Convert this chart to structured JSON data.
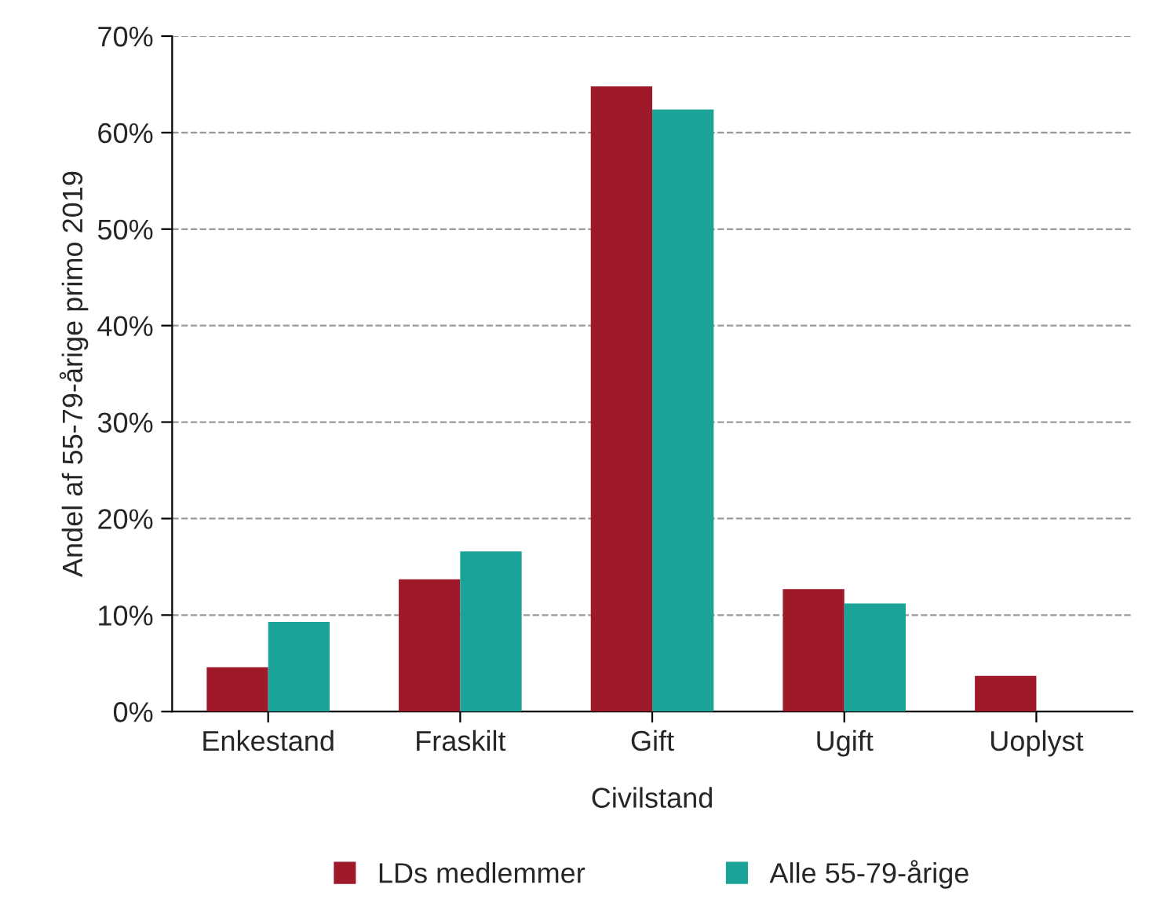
{
  "chart_data": {
    "type": "bar",
    "xlabel": "Civilstand",
    "ylabel": "Andel af 55-79-årige primo 2019",
    "categories": [
      "Enkestand",
      "Fraskilt",
      "Gift",
      "Ugift",
      "Uoplyst"
    ],
    "series": [
      {
        "name": "LDs medlemmer",
        "color": "#9e1a2b",
        "values": [
          4.6,
          13.7,
          64.8,
          12.7,
          3.7
        ]
      },
      {
        "name": "Alle 55-79-årige",
        "color": "#1aa396",
        "values": [
          9.3,
          16.6,
          62.4,
          11.2,
          null
        ]
      }
    ],
    "ylim": [
      0,
      70
    ],
    "yticks": [
      {
        "value": 0,
        "label": "0%"
      },
      {
        "value": 10,
        "label": "10%"
      },
      {
        "value": 20,
        "label": "20%"
      },
      {
        "value": 30,
        "label": "30%"
      },
      {
        "value": 40,
        "label": "40%"
      },
      {
        "value": 50,
        "label": "50%"
      },
      {
        "value": 60,
        "label": "60%"
      },
      {
        "value": 70,
        "label": "70%"
      }
    ],
    "grid": "y",
    "legend": "bottom"
  }
}
